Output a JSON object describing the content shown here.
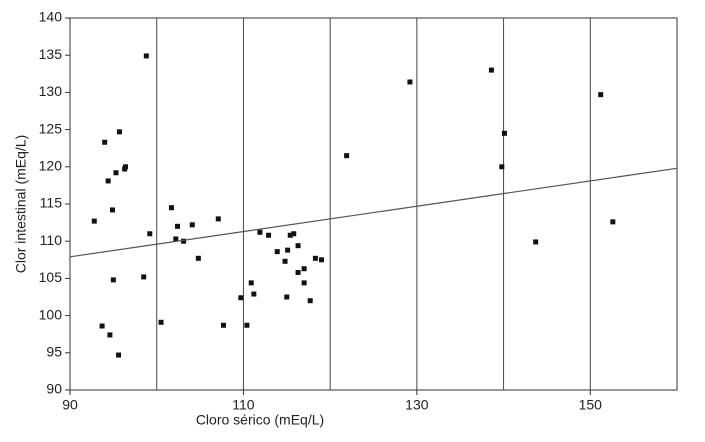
{
  "chart_data": {
    "type": "scatter",
    "x_label": "Cloro sérico (mEq/L)",
    "y_label": "Clor intestinal (mEq/L)",
    "xlim": [
      90,
      160
    ],
    "ylim": [
      90,
      140
    ],
    "xticks": [
      90,
      110,
      130,
      150
    ],
    "yticks": [
      90,
      95,
      100,
      105,
      110,
      115,
      120,
      125,
      130,
      135,
      140
    ],
    "grid_x": [
      100,
      110,
      120,
      130,
      140,
      150
    ],
    "color": "#111111",
    "series": [
      {
        "x": [
          98.8,
          129.2,
          138.6,
          151.2,
          140.1,
          95.7,
          94.0,
          96.4,
          96.3,
          95.3,
          94.4,
          121.9,
          139.8,
          94.9,
          92.8,
          101.7,
          99.2,
          102.4,
          104.1,
          107.1,
          102.2,
          103.1,
          111.9,
          112.9,
          115.4,
          115.8,
          115.1,
          113.9,
          116.3,
          104.8,
          114.8,
          118.3,
          119.0,
          117.0,
          116.3,
          95.0,
          98.5,
          110.9,
          117.0,
          152.6,
          143.7,
          109.7,
          111.2,
          115.0,
          117.7,
          100.5,
          107.7,
          110.4,
          93.7,
          94.6,
          95.6
        ],
        "values": [
          134.9,
          131.4,
          133.0,
          129.7,
          124.5,
          124.7,
          123.3,
          120.0,
          119.7,
          119.2,
          118.1,
          121.5,
          120.0,
          114.2,
          112.7,
          114.5,
          111.0,
          112.0,
          112.2,
          113.0,
          110.3,
          110.0,
          111.2,
          110.8,
          110.8,
          111.0,
          108.8,
          108.6,
          109.4,
          107.7,
          107.3,
          107.7,
          107.5,
          106.3,
          105.8,
          104.8,
          105.2,
          104.4,
          104.4,
          112.6,
          109.9,
          102.4,
          102.9,
          102.5,
          102.0,
          99.1,
          98.7,
          98.7,
          98.6,
          97.4,
          94.7
        ]
      }
    ],
    "trendline": {
      "x": [
        90,
        160
      ],
      "values": [
        107.9,
        119.8
      ],
      "color": "#555555"
    }
  }
}
